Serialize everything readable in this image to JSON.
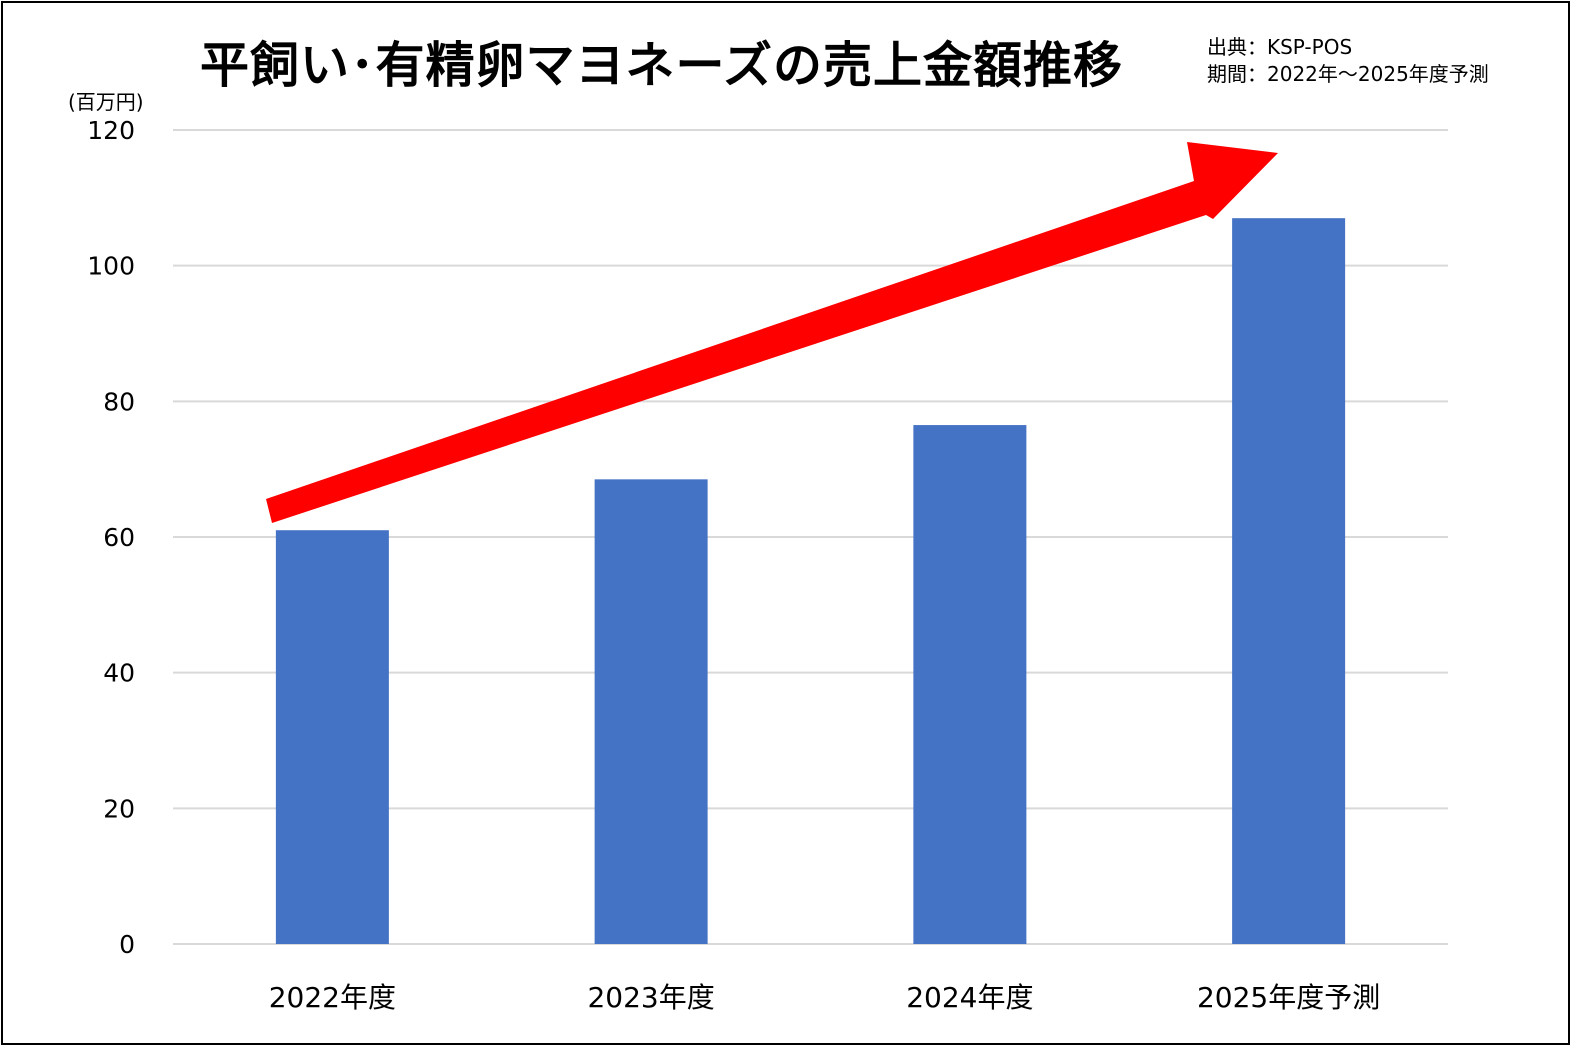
{
  "chart_data": {
    "type": "bar",
    "title": "平飼い･有精卵マヨネーズの売上金額推移",
    "source_line1": "出典：KSP-POS",
    "source_line2": "期間：2022年～2025年度予測",
    "y_unit": "(百万円)",
    "categories": [
      "2022年度",
      "2023年度",
      "2024年度",
      "2025年度予測"
    ],
    "values": [
      61,
      68.5,
      76.5,
      107
    ],
    "ylim": [
      0,
      120
    ],
    "yticks": [
      "0",
      "20",
      "40",
      "60",
      "80",
      "100",
      "120"
    ],
    "grid": true,
    "colors": {
      "bar": "#4472C4",
      "arrow": "#FF0000",
      "grid": "#D9D9D9"
    },
    "annotation": "red-upward-trend-arrow"
  }
}
